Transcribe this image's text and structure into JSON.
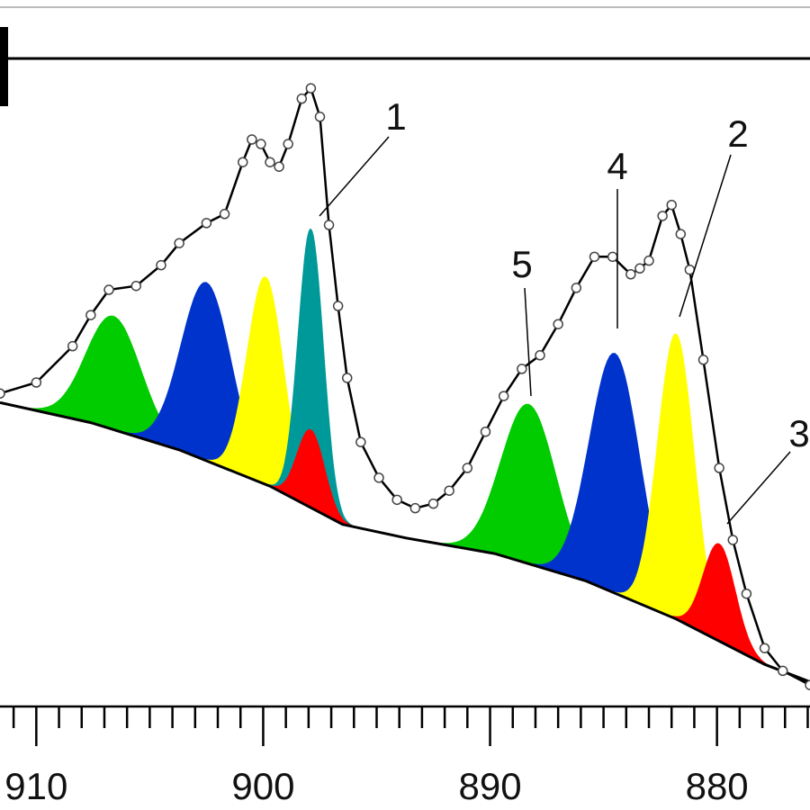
{
  "chart_data": {
    "type": "line",
    "xlim": [
      911.6,
      875.9
    ],
    "ylim": [
      0,
      100
    ],
    "xticks": [
      910,
      900,
      890,
      880
    ],
    "xminorticks": [
      911,
      909,
      908,
      907,
      906,
      905,
      904,
      903,
      902,
      901,
      899,
      898,
      897,
      896,
      895,
      894,
      893,
      892,
      891,
      889,
      888,
      887,
      886,
      885,
      884,
      883,
      882,
      881,
      879,
      878,
      877,
      876
    ],
    "background": {
      "color": "#000000",
      "x": [
        911.6,
        907.6,
        903.7,
        899.7,
        896.5,
        893.7,
        889.8,
        885.8,
        881.8,
        877.9,
        875.9
      ],
      "values": [
        46.9,
        43.8,
        39.6,
        34.0,
        28.1,
        26.0,
        23.6,
        19.4,
        13.5,
        6.5,
        3.8
      ]
    },
    "peaks": [
      {
        "color": "#00cc00",
        "center": 906.6,
        "height": 17.5,
        "sigma": 1.2
      },
      {
        "color": "#0033cc",
        "center": 902.5,
        "height": 27.5,
        "sigma": 1.1
      },
      {
        "color": "#ffff00",
        "center": 899.9,
        "height": 32,
        "sigma": 0.8
      },
      {
        "color": "#009999",
        "center": 897.9,
        "height": 43,
        "sigma": 0.55
      },
      {
        "color": "#ff0000",
        "center": 897.9,
        "height": 12,
        "sigma": 0.6
      },
      {
        "color": "#00cc00",
        "center": 888.3,
        "height": 24.6,
        "sigma": 1.2
      },
      {
        "color": "#0033cc",
        "center": 884.5,
        "height": 37,
        "sigma": 1.1
      },
      {
        "color": "#ffff00",
        "center": 881.8,
        "height": 44,
        "sigma": 0.8
      },
      {
        "color": "#ff0000",
        "center": 879.9,
        "height": 15,
        "sigma": 0.7
      }
    ],
    "measured": {
      "color": "#000000",
      "x": [
        911.6,
        910.0,
        908.4,
        907.6,
        906.8,
        905.6,
        904.5,
        903.7,
        902.5,
        901.7,
        900.9,
        900.5,
        900.1,
        899.7,
        899.3,
        898.9,
        898.3,
        897.9,
        897.5,
        897.1,
        896.7,
        896.3,
        895.7,
        894.9,
        894.1,
        893.3,
        892.5,
        891.8,
        891.0,
        890.2,
        889.4,
        888.6,
        887.8,
        887.0,
        886.2,
        885.4,
        884.6,
        883.8,
        883.4,
        883.0,
        882.4,
        882.0,
        881.6,
        881.2,
        880.6,
        879.9,
        879.3,
        878.7,
        877.9,
        877.1,
        875.9
      ],
      "values": [
        48.3,
        50.0,
        55.6,
        60.4,
        64.3,
        64.9,
        68.1,
        71.5,
        74.6,
        76.0,
        84.0,
        87.5,
        86.8,
        84.0,
        83.3,
        86.8,
        93.8,
        95.4,
        91.0,
        74.3,
        61.8,
        50.7,
        40.8,
        35.3,
        31.9,
        30.6,
        31.3,
        33.3,
        36.8,
        42.4,
        47.9,
        52.1,
        54.2,
        59.0,
        64.6,
        69.4,
        69.4,
        66.7,
        67.6,
        68.8,
        75.7,
        77.4,
        72.9,
        67.4,
        53.5,
        36.8,
        25.7,
        17.4,
        9.0,
        5.5,
        3.3
      ]
    },
    "annotations": [
      "1",
      "2",
      "3",
      "4",
      "5"
    ]
  }
}
